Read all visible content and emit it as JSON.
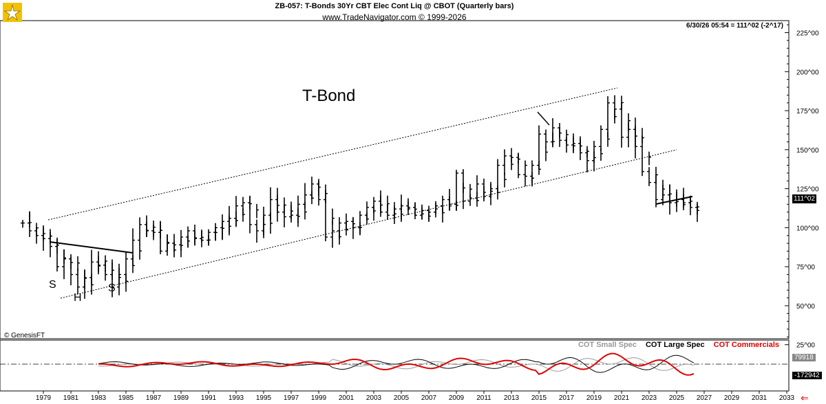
{
  "header": {
    "title": "ZB-057:  T-Bonds 30Yr CBT Elec Cont Liq @ CBOT  (Quarterly bars)",
    "subtitle": "www.TradeNavigator.com © 1999-2026",
    "readout": "6/30/26 05:54 = 111^02 (-2^17)"
  },
  "annotations": {
    "main_label": "T-Bond",
    "left_shoulder": "S",
    "head": "H",
    "right_shoulder": "S",
    "copyright": "© GenesisFT"
  },
  "legend": {
    "small_spec": "COT Small Spec",
    "large_spec": "COT Large Spec",
    "commercials": "COT Commercials"
  },
  "tags": {
    "last_price": "111^02",
    "cot_high": "79918",
    "cot_low": "-172942"
  },
  "colors": {
    "small_spec": "#999999",
    "large_spec": "#000000",
    "commercials": "#e00000",
    "price_bars": "#000000"
  },
  "chart_data": {
    "type": "bar",
    "bar_style": "ohlc",
    "title": "ZB-057:  T-Bonds 30Yr CBT Elec Cont Liq @ CBOT  (Quarterly bars)",
    "y_ticks": [
      "25^00",
      "50^00",
      "75^00",
      "100^00",
      "125^00",
      "150^00",
      "175^00",
      "200^00",
      "225^00"
    ],
    "ylim": [
      20,
      228
    ],
    "x_ticks": [
      "1979",
      "1981",
      "1983",
      "1985",
      "1987",
      "1989",
      "1991",
      "1993",
      "1995",
      "1997",
      "1999",
      "2001",
      "2003",
      "2005",
      "2007",
      "2009",
      "2011",
      "2013",
      "2015",
      "2017",
      "2019",
      "2021",
      "2023",
      "2025",
      "2027",
      "2029",
      "2031",
      "2033"
    ],
    "xlim": [
      1977.5,
      2033.5
    ],
    "quarterly_close": [
      [
        1977.5,
        103
      ],
      [
        1978.0,
        98
      ],
      [
        1978.5,
        95
      ],
      [
        1979.0,
        93
      ],
      [
        1979.5,
        88
      ],
      [
        1980.0,
        75
      ],
      [
        1980.5,
        80
      ],
      [
        1981.0,
        70
      ],
      [
        1981.5,
        62
      ],
      [
        1982.0,
        68
      ],
      [
        1982.5,
        78
      ],
      [
        1983.0,
        76
      ],
      [
        1983.5,
        70
      ],
      [
        1984.0,
        62
      ],
      [
        1984.5,
        70
      ],
      [
        1985.0,
        80
      ],
      [
        1985.5,
        92
      ],
      [
        1986.0,
        102
      ],
      [
        1986.5,
        98
      ],
      [
        1987.0,
        97
      ],
      [
        1987.5,
        85
      ],
      [
        1988.0,
        90
      ],
      [
        1988.5,
        89
      ],
      [
        1989.0,
        94
      ],
      [
        1989.5,
        98
      ],
      [
        1990.0,
        93
      ],
      [
        1990.5,
        92
      ],
      [
        1991.0,
        97
      ],
      [
        1991.5,
        100
      ],
      [
        1992.0,
        104
      ],
      [
        1992.5,
        106
      ],
      [
        1993.0,
        114
      ],
      [
        1993.5,
        116
      ],
      [
        1994.0,
        102
      ],
      [
        1994.5,
        98
      ],
      [
        1995.0,
        108
      ],
      [
        1995.5,
        118
      ],
      [
        1996.0,
        110
      ],
      [
        1996.5,
        107
      ],
      [
        1997.0,
        108
      ],
      [
        1997.5,
        115
      ],
      [
        1998.0,
        121
      ],
      [
        1998.5,
        128
      ],
      [
        1999.0,
        118
      ],
      [
        1999.5,
        94
      ],
      [
        2000.0,
        98
      ],
      [
        2000.5,
        103
      ],
      [
        2001.0,
        104
      ],
      [
        2001.5,
        100
      ],
      [
        2002.0,
        108
      ],
      [
        2002.5,
        113
      ],
      [
        2003.0,
        117
      ],
      [
        2003.5,
        110
      ],
      [
        2004.0,
        108
      ],
      [
        2004.5,
        112
      ],
      [
        2005.0,
        114
      ],
      [
        2005.5,
        113
      ],
      [
        2006.0,
        108
      ],
      [
        2006.5,
        111
      ],
      [
        2007.0,
        110
      ],
      [
        2007.5,
        114
      ],
      [
        2008.0,
        118
      ],
      [
        2008.5,
        115
      ],
      [
        2009.0,
        135
      ],
      [
        2009.5,
        117
      ],
      [
        2010.0,
        119
      ],
      [
        2010.5,
        128
      ],
      [
        2011.0,
        120
      ],
      [
        2011.5,
        125
      ],
      [
        2012.0,
        140
      ],
      [
        2012.5,
        146
      ],
      [
        2013.0,
        145
      ],
      [
        2013.5,
        134
      ],
      [
        2014.0,
        133
      ],
      [
        2014.5,
        140
      ],
      [
        2015.0,
        160
      ],
      [
        2015.5,
        155
      ],
      [
        2016.0,
        164
      ],
      [
        2016.5,
        156
      ],
      [
        2017.0,
        153
      ],
      [
        2017.5,
        154
      ],
      [
        2018.0,
        148
      ],
      [
        2018.5,
        143
      ],
      [
        2019.0,
        152
      ],
      [
        2019.5,
        163
      ],
      [
        2020.0,
        180
      ],
      [
        2020.5,
        176
      ],
      [
        2021.0,
        158
      ],
      [
        2021.5,
        163
      ],
      [
        2022.0,
        152
      ],
      [
        2022.5,
        136
      ],
      [
        2023.0,
        129
      ],
      [
        2023.5,
        118
      ],
      [
        2024.0,
        121
      ],
      [
        2024.5,
        116
      ],
      [
        2025.0,
        118
      ],
      [
        2025.5,
        116
      ],
      [
        2026.0,
        113
      ],
      [
        2026.5,
        111.06
      ]
    ]
  }
}
